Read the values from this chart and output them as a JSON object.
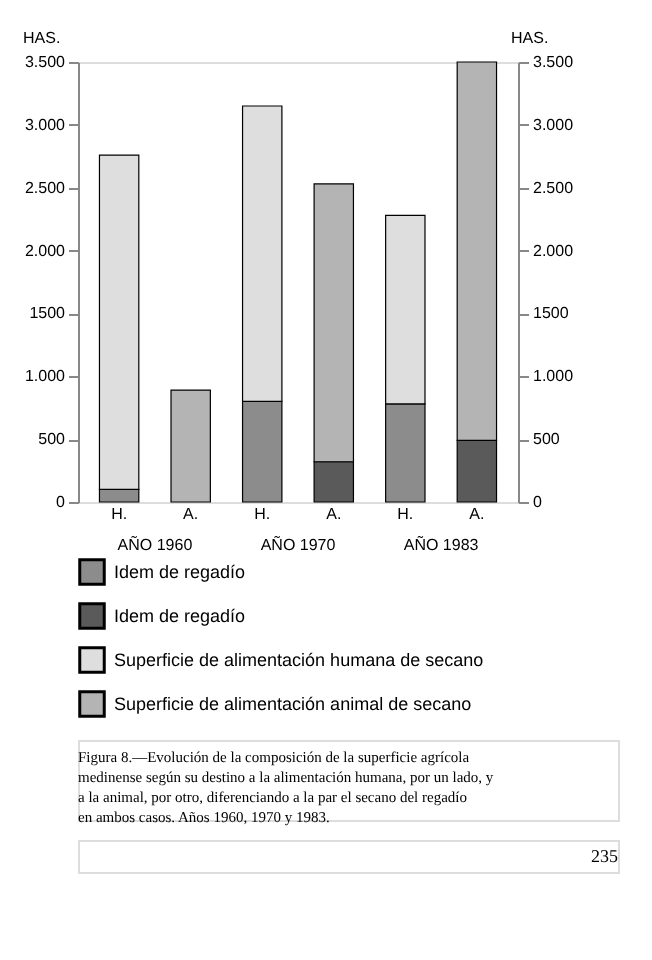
{
  "chart_data": {
    "type": "bar",
    "stacked": true,
    "categories": [
      "H.",
      "A.",
      "H.",
      "A.",
      "H.",
      "A."
    ],
    "series": [
      {
        "name": "Idem de regadío",
        "color": "#8c8c8c",
        "values": [
          100,
          null,
          800,
          null,
          780,
          null
        ]
      },
      {
        "name": "Idem de regadío",
        "color": "#5a5a5a",
        "values": [
          null,
          null,
          null,
          320,
          null,
          490
        ]
      },
      {
        "name": "Superficie de alimentación humana de secano",
        "color": "#dedede",
        "values": [
          2660,
          null,
          2350,
          null,
          1500,
          null
        ]
      },
      {
        "name": "Superficie de alimentación animal de secano",
        "color": "#b4b4b4",
        "values": [
          null,
          890,
          null,
          2210,
          null,
          3010
        ]
      }
    ],
    "ylabel": "HAS.",
    "y2label": "HAS.",
    "ylim": [
      0,
      3500
    ],
    "y2lim": [
      0,
      3500
    ],
    "yticks": [
      0,
      500,
      {
        "value": 1000,
        "label": "1.000"
      },
      1500,
      {
        "value": 2000,
        "label": "2.000"
      },
      {
        "value": 2500,
        "label": "2.500"
      },
      {
        "value": 3000,
        "label": "3.000"
      },
      {
        "value": 3500,
        "label": "3.500"
      }
    ],
    "y2ticks": [
      0,
      500,
      {
        "value": 1000,
        "label": "1.000"
      },
      1500,
      {
        "value": 2000,
        "label": "2.000"
      },
      {
        "value": 2500,
        "label": "2.500"
      },
      {
        "value": 3000,
        "label": "3.000"
      },
      {
        "value": 3500,
        "label": "3.500"
      }
    ],
    "grid": false,
    "legend": "bottom",
    "annotations": [
      "AÑO 1960",
      "AÑO 1970",
      "AÑO 1983",
      "Figura 8.—Evolución de la composición de la superficie agrícola medinense según su destino a la alimentación humana, por un lado, y a la animal, por otro, diferenciando a la par el secano del regadío en ambos casos. Años 1960, 1970 y 1983.",
      "235"
    ]
  }
}
